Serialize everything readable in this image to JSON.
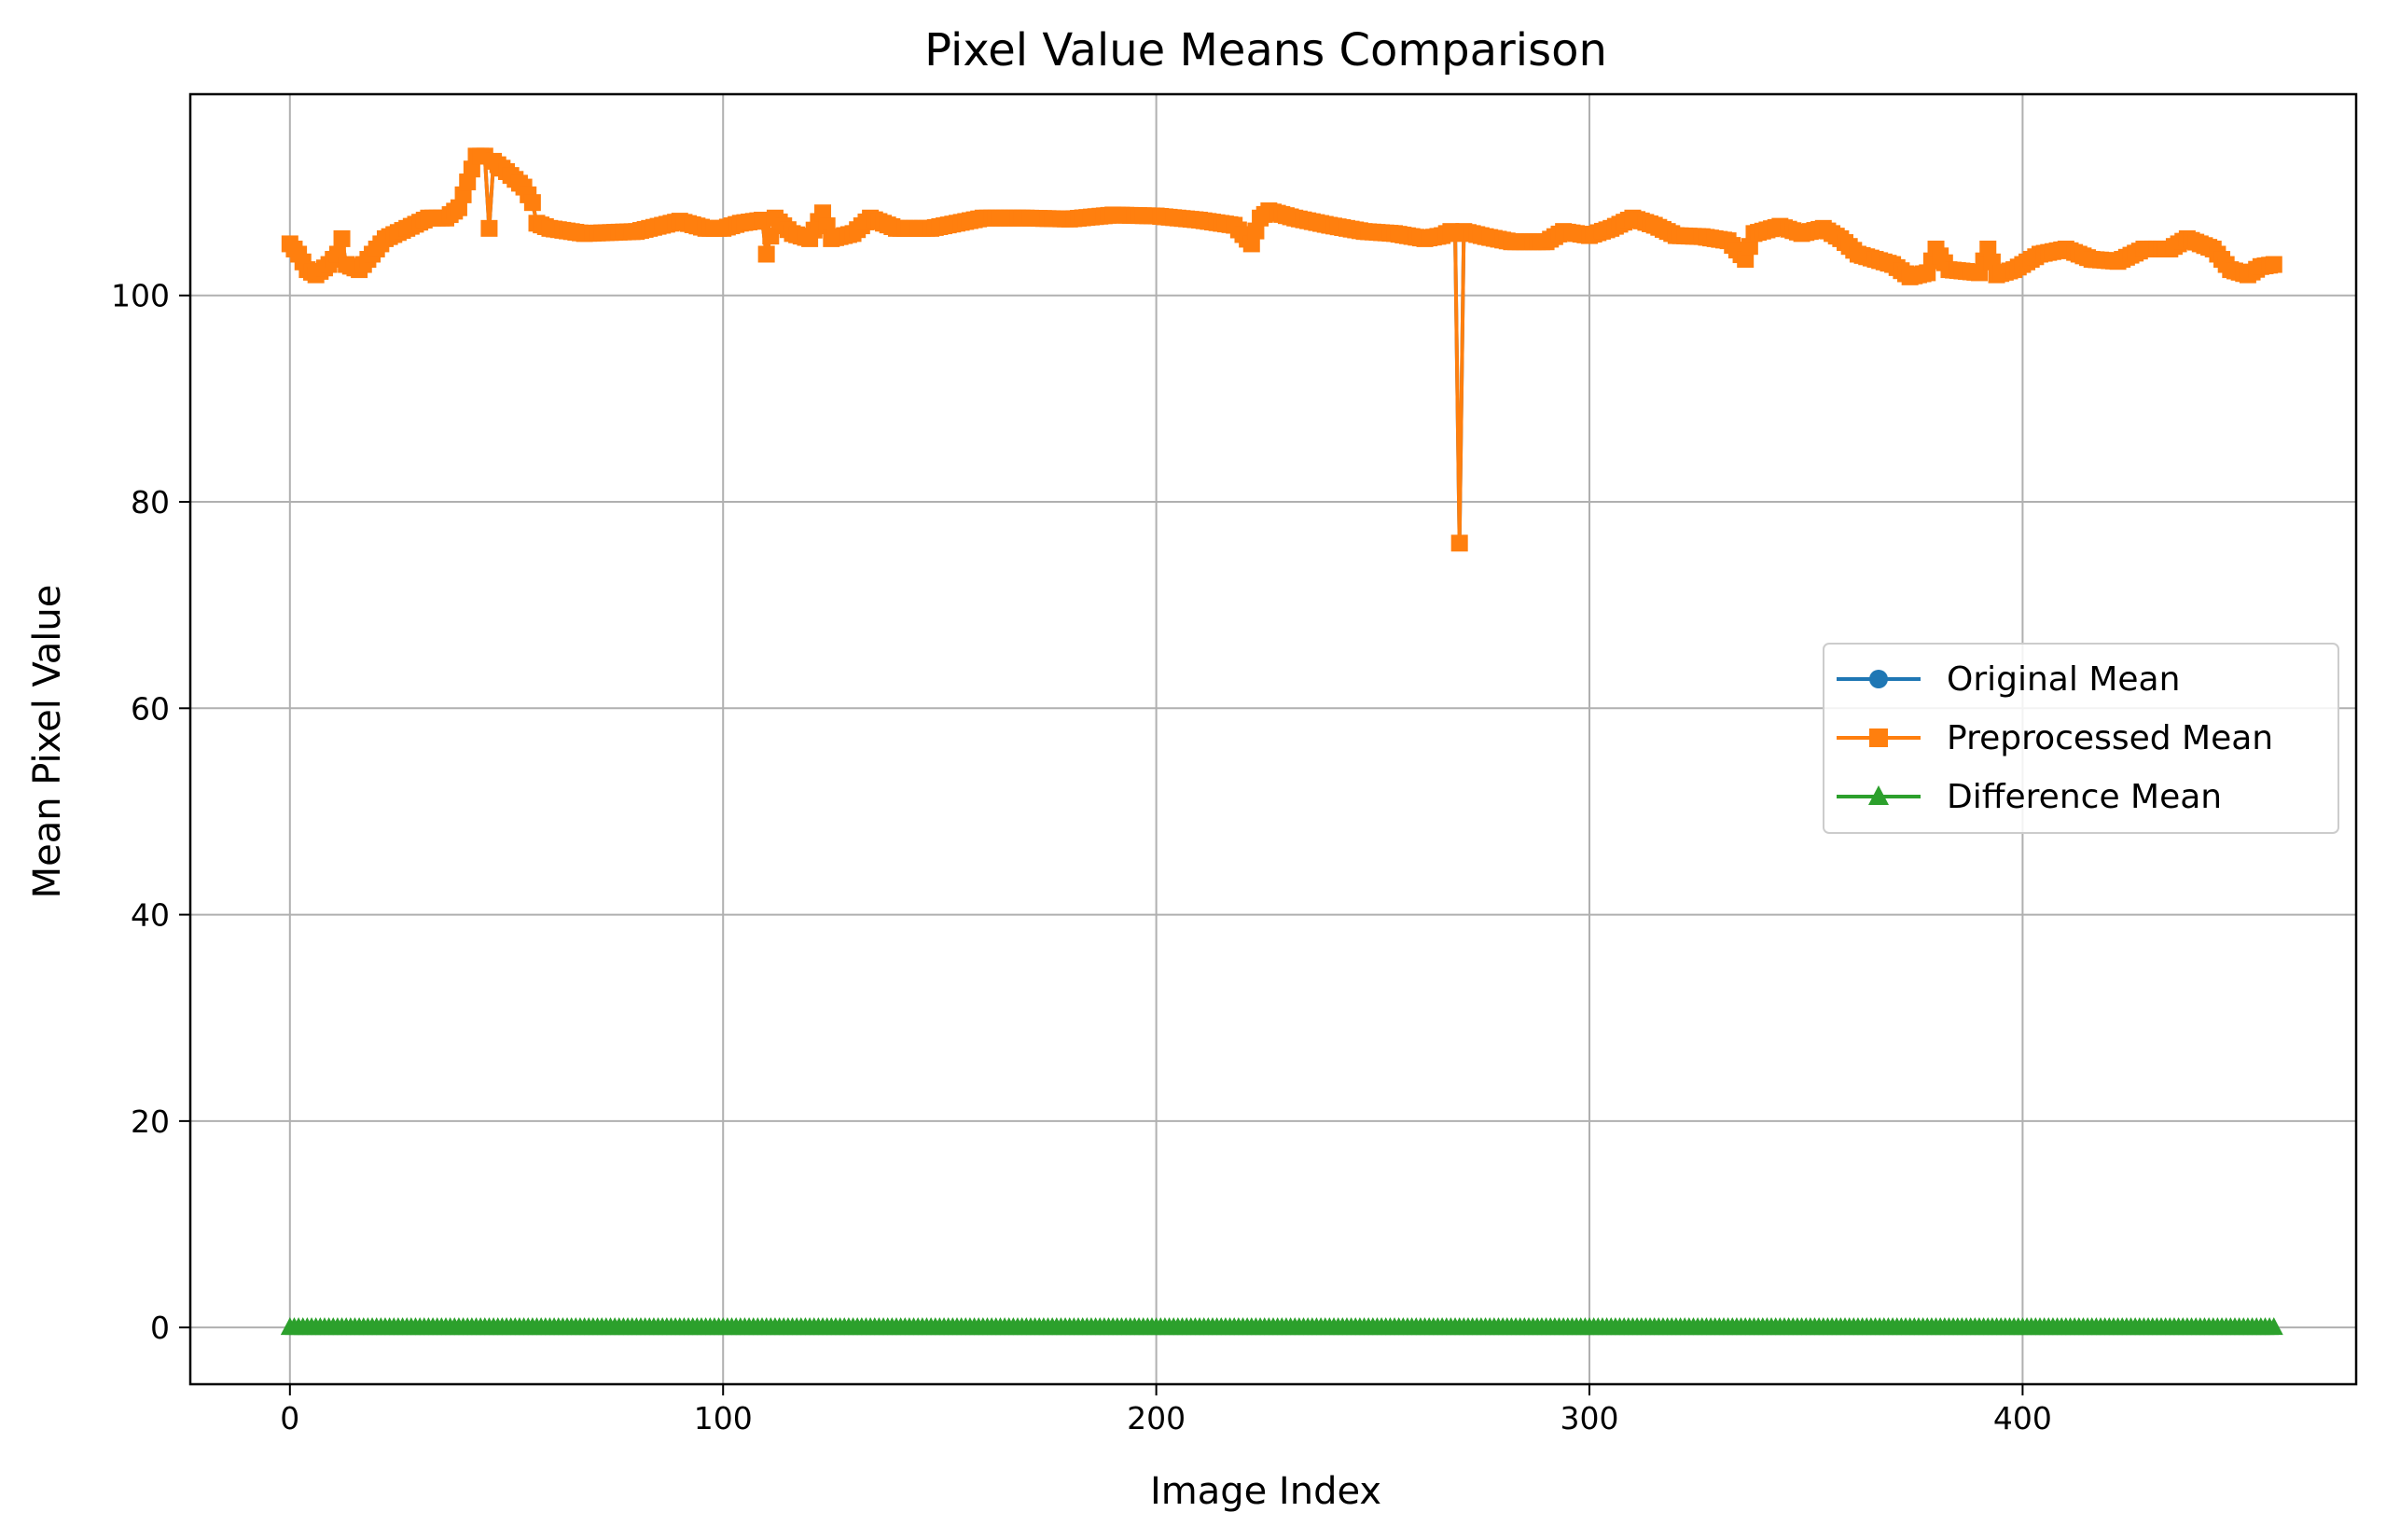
{
  "chart_data": {
    "type": "line",
    "title": "Pixel Value Means Comparison",
    "xlabel": "Image Index",
    "ylabel": "Mean Pixel Value",
    "xlim": [
      -23,
      477
    ],
    "ylim": [
      -5.5,
      119.5
    ],
    "xticks": [
      0,
      100,
      200,
      300,
      400
    ],
    "yticks": [
      0,
      20,
      40,
      60,
      80,
      100
    ],
    "grid": true,
    "legend_location": "center-right",
    "n_points": 459,
    "preprocessed_anchors": [
      [
        0,
        105
      ],
      [
        2,
        104
      ],
      [
        4,
        102.5
      ],
      [
        6,
        102
      ],
      [
        9,
        103
      ],
      [
        11,
        104
      ],
      [
        12,
        105.5
      ],
      [
        13,
        103
      ],
      [
        16,
        102.5
      ],
      [
        18,
        103.5
      ],
      [
        22,
        105.5
      ],
      [
        27,
        106.5
      ],
      [
        32,
        107.5
      ],
      [
        36,
        107.5
      ],
      [
        39,
        108.5
      ],
      [
        41,
        111
      ],
      [
        43,
        113.5
      ],
      [
        45,
        113.5
      ],
      [
        46,
        106.5
      ],
      [
        47,
        113
      ],
      [
        50,
        112
      ],
      [
        54,
        110.5
      ],
      [
        56,
        109
      ],
      [
        57,
        107
      ],
      [
        60,
        106.5
      ],
      [
        68,
        106
      ],
      [
        80,
        106.2
      ],
      [
        90,
        107.2
      ],
      [
        96,
        106.5
      ],
      [
        100,
        106.5
      ],
      [
        104,
        107
      ],
      [
        109,
        107.3
      ],
      [
        110,
        104
      ],
      [
        112,
        107.5
      ],
      [
        116,
        106
      ],
      [
        120,
        105.5
      ],
      [
        123,
        108
      ],
      [
        125,
        105.5
      ],
      [
        130,
        106
      ],
      [
        134,
        107.5
      ],
      [
        140,
        106.5
      ],
      [
        148,
        106.5
      ],
      [
        160,
        107.5
      ],
      [
        170,
        107.5
      ],
      [
        180,
        107.4
      ],
      [
        190,
        107.8
      ],
      [
        200,
        107.7
      ],
      [
        210,
        107.3
      ],
      [
        218,
        106.8
      ],
      [
        222,
        105
      ],
      [
        224,
        107.5
      ],
      [
        226,
        108.2
      ],
      [
        232,
        107.5
      ],
      [
        240,
        106.8
      ],
      [
        248,
        106.2
      ],
      [
        255,
        106
      ],
      [
        262,
        105.5
      ],
      [
        266,
        105.8
      ],
      [
        268,
        106.2
      ],
      [
        269,
        106
      ],
      [
        270,
        76
      ],
      [
        271,
        106.2
      ],
      [
        276,
        105.7
      ],
      [
        282,
        105.2
      ],
      [
        290,
        105.2
      ],
      [
        294,
        106.2
      ],
      [
        300,
        105.8
      ],
      [
        305,
        106.5
      ],
      [
        310,
        107.5
      ],
      [
        315,
        106.8
      ],
      [
        320,
        105.8
      ],
      [
        326,
        105.7
      ],
      [
        332,
        105.3
      ],
      [
        336,
        103.5
      ],
      [
        338,
        106
      ],
      [
        344,
        106.7
      ],
      [
        349,
        106
      ],
      [
        354,
        106.5
      ],
      [
        358,
        105.5
      ],
      [
        362,
        104
      ],
      [
        366,
        103.5
      ],
      [
        370,
        103
      ],
      [
        374,
        101.8
      ],
      [
        378,
        102.2
      ],
      [
        380,
        104.5
      ],
      [
        383,
        102.5
      ],
      [
        390,
        102.2
      ],
      [
        392,
        104.5
      ],
      [
        394,
        102
      ],
      [
        398,
        102.5
      ],
      [
        404,
        104
      ],
      [
        410,
        104.5
      ],
      [
        416,
        103.5
      ],
      [
        422,
        103.3
      ],
      [
        428,
        104.5
      ],
      [
        434,
        104.5
      ],
      [
        438,
        105.5
      ],
      [
        444,
        104.5
      ],
      [
        448,
        102.5
      ],
      [
        452,
        102
      ],
      [
        455,
        102.8
      ],
      [
        458,
        103
      ]
    ],
    "series": [
      {
        "name": "Original Mean",
        "color": "#1f77b4",
        "marker": "circle",
        "values": "same as Preprocessed Mean (hidden beneath)"
      },
      {
        "name": "Preprocessed Mean",
        "color": "#ff7f0e",
        "marker": "square"
      },
      {
        "name": "Difference Mean",
        "color": "#2ca02c",
        "marker": "triangle",
        "constant_value": 0
      }
    ]
  }
}
